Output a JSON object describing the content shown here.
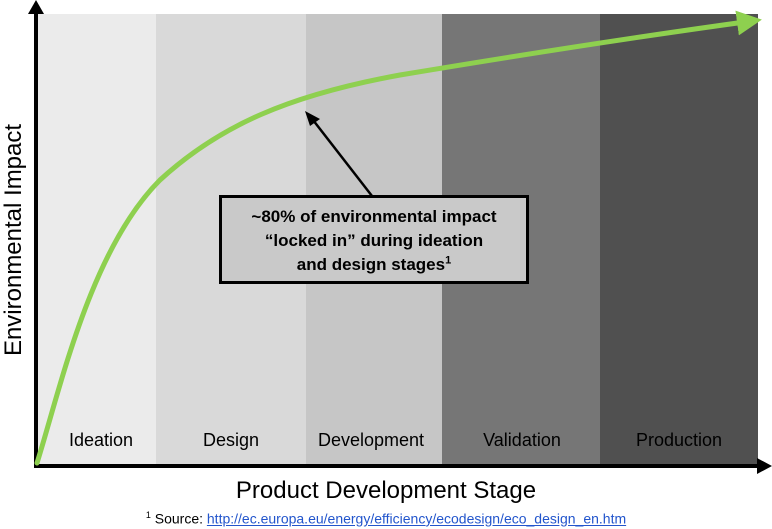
{
  "diagram": {
    "stages": [
      {
        "label": "Ideation",
        "color": "#ebebeb"
      },
      {
        "label": "Design",
        "color": "#d9d9d9"
      },
      {
        "label": "Development",
        "color": "#c6c6c6"
      },
      {
        "label": "Validation",
        "color": "#767676"
      },
      {
        "label": "Production",
        "color": "#505050"
      }
    ],
    "curve_color": "#8ed04f",
    "y_axis_label": "Environmental Impact",
    "x_axis_label": "Product Development Stage",
    "callout": {
      "line1": "~80% of environmental impact",
      "line2": "“locked in” during ideation",
      "line3": "and design stages",
      "footnote_marker": "1"
    },
    "footnote": {
      "marker": "1",
      "prefix": "Source:",
      "link_text": "http://ec.europa.eu/energy/efficiency/ecodesign/eco_design_en.htm"
    }
  }
}
